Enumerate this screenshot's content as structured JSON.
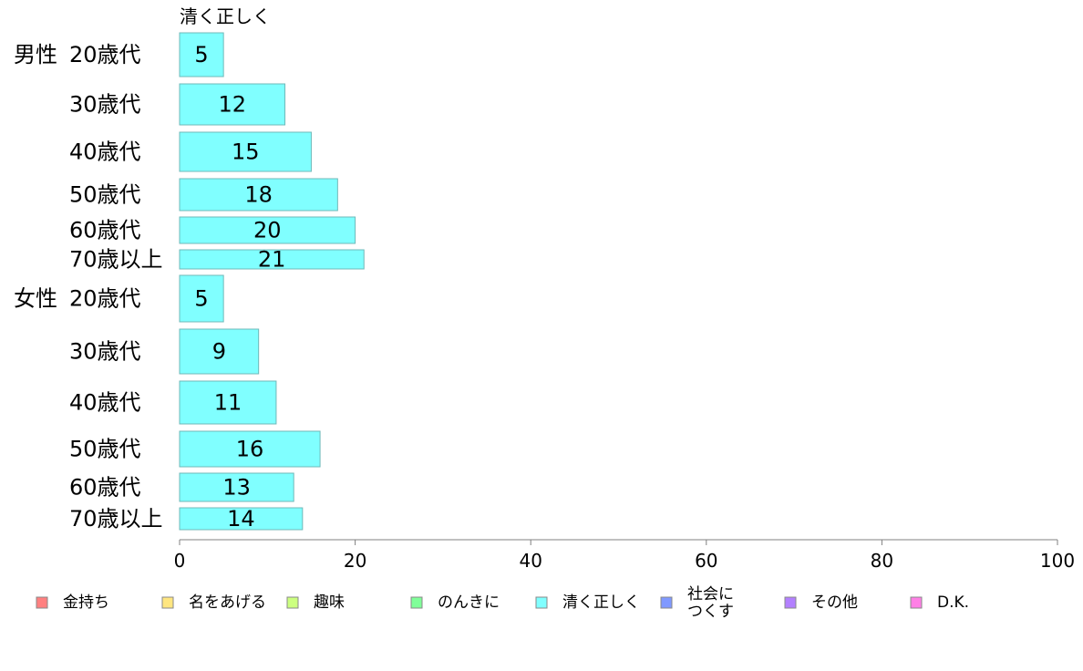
{
  "chart_data": {
    "type": "bar",
    "orientation": "horizontal",
    "stacked": true,
    "series_label": "清く正しく",
    "groups": [
      {
        "label": "男性",
        "categories": [
          "20歳代",
          "30歳代",
          "40歳代",
          "50歳代",
          "60歳代",
          "70歳以上"
        ]
      },
      {
        "label": "女性",
        "categories": [
          "20歳代",
          "30歳代",
          "40歳代",
          "50歳代",
          "60歳代",
          "70歳以上"
        ]
      }
    ],
    "series": [
      {
        "name": "清く正しく",
        "color": "#80ffff",
        "values": [
          5,
          12,
          15,
          18,
          20,
          21,
          5,
          9,
          11,
          16,
          13,
          14
        ]
      }
    ],
    "xlim": [
      0,
      100
    ],
    "xticks": [
      0,
      20,
      40,
      60,
      80,
      100
    ],
    "grid": false,
    "legend_position": "bottom",
    "legend": [
      {
        "label": "金持ち",
        "color": "#ff8080"
      },
      {
        "label": "名をあげる",
        "color": "#ffe680"
      },
      {
        "label": "趣味",
        "color": "#ccff80"
      },
      {
        "label": "のんきに",
        "color": "#80ff99"
      },
      {
        "label": "清く正しく",
        "color": "#80ffff"
      },
      {
        "label": "社会に\nつくす",
        "color": "#8099ff"
      },
      {
        "label": "その他",
        "color": "#b380ff"
      },
      {
        "label": "D.K.",
        "color": "#ff80e6"
      }
    ]
  }
}
